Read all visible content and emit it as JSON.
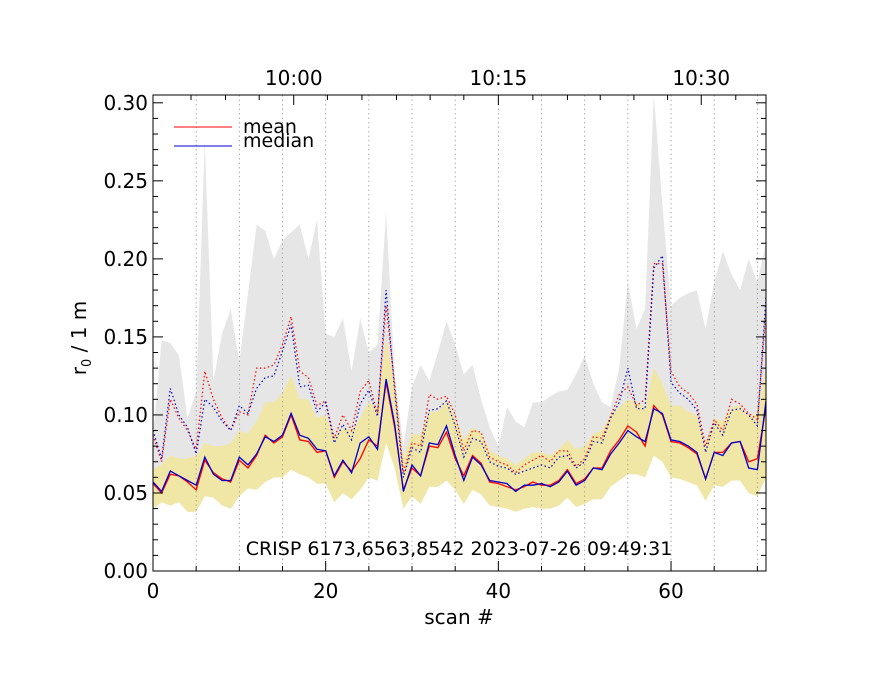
{
  "chart_data": {
    "type": "line",
    "xlabel": "scan #",
    "ylabel": "r₀ / 1 m",
    "ylabel_main": "r",
    "ylabel_sub": "0",
    "ylabel_rest": " / 1 m",
    "xlim": [
      0,
      71
    ],
    "ylim": [
      0.0,
      0.305
    ],
    "xticks": [
      0,
      20,
      40,
      60
    ],
    "yticks": [
      0.0,
      0.05,
      0.1,
      0.15,
      0.2,
      0.25,
      0.3
    ],
    "ytick_labels": [
      "0.00",
      "0.05",
      "0.10",
      "0.15",
      "0.20",
      "0.25",
      "0.30"
    ],
    "top_axis_labels": [
      {
        "text": "10:00",
        "x": 16.3
      },
      {
        "text": "10:15",
        "x": 40.0
      },
      {
        "text": "10:30",
        "x": 63.5
      }
    ],
    "vertical_dotted_lines": [
      5,
      10,
      15,
      20,
      25,
      30,
      35,
      40,
      45,
      50,
      55,
      60,
      65,
      70
    ],
    "annotation": "CRISP 6173,6563,8542 2023-07-26 09:49:31",
    "legend": [
      {
        "name": "mean",
        "color": "#ff0000"
      },
      {
        "name": "median",
        "color": "#0000cc"
      }
    ],
    "colors": {
      "gray_band": "#e6e6e6",
      "yellow_band": "#f0e6a6",
      "mean": "#ff0000",
      "median": "#0000cc"
    },
    "series": [
      {
        "name": "mean",
        "style": "solid",
        "color": "#ff0000",
        "values": [
          0.056,
          0.05,
          0.062,
          0.061,
          0.057,
          0.052,
          0.071,
          0.063,
          0.059,
          0.057,
          0.071,
          0.066,
          0.074,
          0.087,
          0.082,
          0.086,
          0.1,
          0.084,
          0.083,
          0.076,
          0.077,
          0.06,
          0.07,
          0.064,
          0.072,
          0.084,
          0.08,
          0.121,
          0.092,
          0.052,
          0.066,
          0.061,
          0.08,
          0.079,
          0.089,
          0.072,
          0.061,
          0.074,
          0.069,
          0.057,
          0.056,
          0.054,
          0.052,
          0.054,
          0.057,
          0.055,
          0.055,
          0.058,
          0.065,
          0.056,
          0.059,
          0.066,
          0.066,
          0.077,
          0.084,
          0.093,
          0.089,
          0.08,
          0.106,
          0.1,
          0.083,
          0.082,
          0.079,
          0.075,
          0.059,
          0.076,
          0.076,
          0.082,
          0.083,
          0.07,
          0.072,
          0.105
        ]
      },
      {
        "name": "median",
        "style": "solid",
        "color": "#0000cc",
        "values": [
          0.057,
          0.051,
          0.064,
          0.061,
          0.058,
          0.055,
          0.073,
          0.062,
          0.058,
          0.058,
          0.073,
          0.068,
          0.075,
          0.086,
          0.083,
          0.087,
          0.101,
          0.087,
          0.085,
          0.078,
          0.077,
          0.061,
          0.071,
          0.063,
          0.082,
          0.086,
          0.078,
          0.123,
          0.094,
          0.051,
          0.068,
          0.061,
          0.082,
          0.081,
          0.093,
          0.074,
          0.058,
          0.073,
          0.068,
          0.058,
          0.057,
          0.056,
          0.051,
          0.055,
          0.055,
          0.056,
          0.054,
          0.057,
          0.064,
          0.055,
          0.058,
          0.066,
          0.065,
          0.075,
          0.082,
          0.09,
          0.086,
          0.083,
          0.104,
          0.101,
          0.084,
          0.083,
          0.08,
          0.076,
          0.059,
          0.076,
          0.074,
          0.082,
          0.083,
          0.066,
          0.065,
          0.109
        ]
      },
      {
        "name": "mean upper",
        "style": "dotted",
        "color": "#ff0000",
        "values": [
          0.087,
          0.07,
          0.11,
          0.098,
          0.09,
          0.078,
          0.128,
          0.11,
          0.098,
          0.09,
          0.102,
          0.1,
          0.13,
          0.13,
          0.132,
          0.145,
          0.163,
          0.128,
          0.124,
          0.106,
          0.109,
          0.085,
          0.1,
          0.09,
          0.115,
          0.122,
          0.1,
          0.17,
          0.12,
          0.063,
          0.082,
          0.08,
          0.113,
          0.11,
          0.112,
          0.1,
          0.077,
          0.09,
          0.089,
          0.073,
          0.07,
          0.068,
          0.063,
          0.068,
          0.071,
          0.074,
          0.07,
          0.077,
          0.077,
          0.067,
          0.072,
          0.086,
          0.085,
          0.099,
          0.113,
          0.118,
          0.106,
          0.11,
          0.197,
          0.197,
          0.128,
          0.118,
          0.114,
          0.107,
          0.08,
          0.097,
          0.09,
          0.11,
          0.107,
          0.101,
          0.097,
          0.166
        ]
      },
      {
        "name": "median upper",
        "style": "dotted",
        "color": "#0000cc",
        "values": [
          0.09,
          0.072,
          0.117,
          0.1,
          0.092,
          0.075,
          0.11,
          0.105,
          0.096,
          0.09,
          0.106,
          0.101,
          0.117,
          0.124,
          0.125,
          0.141,
          0.158,
          0.118,
          0.119,
          0.102,
          0.108,
          0.082,
          0.094,
          0.084,
          0.107,
          0.116,
          0.099,
          0.18,
          0.115,
          0.06,
          0.079,
          0.076,
          0.103,
          0.104,
          0.109,
          0.093,
          0.073,
          0.085,
          0.083,
          0.07,
          0.067,
          0.066,
          0.062,
          0.064,
          0.066,
          0.068,
          0.066,
          0.073,
          0.074,
          0.066,
          0.07,
          0.083,
          0.082,
          0.098,
          0.108,
          0.13,
          0.104,
          0.104,
          0.194,
          0.202,
          0.121,
          0.114,
          0.11,
          0.103,
          0.076,
          0.095,
          0.087,
          0.103,
          0.104,
          0.1,
          0.093,
          0.176
        ]
      },
      {
        "name": "gray band upper",
        "style": "fill",
        "color": "#e6e6e6",
        "values": [
          0.085,
          0.148,
          0.146,
          0.138,
          0.098,
          0.115,
          0.275,
          0.122,
          0.152,
          0.168,
          0.134,
          0.178,
          0.222,
          0.218,
          0.2,
          0.212,
          0.217,
          0.222,
          0.2,
          0.225,
          0.152,
          0.15,
          0.162,
          0.128,
          0.162,
          0.14,
          0.145,
          0.23,
          0.125,
          0.08,
          0.118,
          0.132,
          0.122,
          0.14,
          0.16,
          0.145,
          0.126,
          0.132,
          0.11,
          0.092,
          0.08,
          0.105,
          0.096,
          0.092,
          0.108,
          0.108,
          0.112,
          0.115,
          0.116,
          0.126,
          0.138,
          0.12,
          0.108,
          0.105,
          0.13,
          0.185,
          0.155,
          0.168,
          0.305,
          0.235,
          0.17,
          0.175,
          0.178,
          0.18,
          0.155,
          0.185,
          0.205,
          0.19,
          0.18,
          0.2,
          0.185,
          0.21
        ]
      },
      {
        "name": "yellow band upper",
        "style": "fill",
        "color": "#f0e6a6",
        "values": [
          0.065,
          0.068,
          0.074,
          0.072,
          0.072,
          0.074,
          0.082,
          0.08,
          0.08,
          0.082,
          0.09,
          0.088,
          0.096,
          0.108,
          0.108,
          0.114,
          0.125,
          0.11,
          0.11,
          0.098,
          0.1,
          0.086,
          0.092,
          0.09,
          0.098,
          0.108,
          0.105,
          0.15,
          0.12,
          0.072,
          0.088,
          0.087,
          0.102,
          0.102,
          0.11,
          0.098,
          0.084,
          0.092,
          0.088,
          0.077,
          0.074,
          0.072,
          0.068,
          0.072,
          0.076,
          0.076,
          0.074,
          0.078,
          0.084,
          0.078,
          0.08,
          0.088,
          0.09,
          0.1,
          0.105,
          0.11,
          0.108,
          0.105,
          0.13,
          0.12,
          0.106,
          0.106,
          0.102,
          0.1,
          0.082,
          0.098,
          0.096,
          0.105,
          0.106,
          0.1,
          0.1,
          0.13
        ]
      },
      {
        "name": "yellow band lower",
        "style": "fill",
        "color": "#f0e6a6",
        "values": [
          0.04,
          0.044,
          0.042,
          0.044,
          0.038,
          0.038,
          0.048,
          0.047,
          0.042,
          0.04,
          0.048,
          0.053,
          0.052,
          0.057,
          0.06,
          0.06,
          0.065,
          0.062,
          0.06,
          0.056,
          0.056,
          0.044,
          0.05,
          0.046,
          0.052,
          0.06,
          0.058,
          0.082,
          0.066,
          0.04,
          0.048,
          0.043,
          0.054,
          0.054,
          0.058,
          0.052,
          0.043,
          0.052,
          0.049,
          0.042,
          0.041,
          0.04,
          0.038,
          0.04,
          0.041,
          0.04,
          0.04,
          0.042,
          0.047,
          0.041,
          0.043,
          0.046,
          0.046,
          0.054,
          0.058,
          0.062,
          0.062,
          0.06,
          0.074,
          0.07,
          0.06,
          0.059,
          0.057,
          0.055,
          0.045,
          0.055,
          0.054,
          0.058,
          0.058,
          0.05,
          0.048,
          0.06
        ]
      }
    ]
  }
}
